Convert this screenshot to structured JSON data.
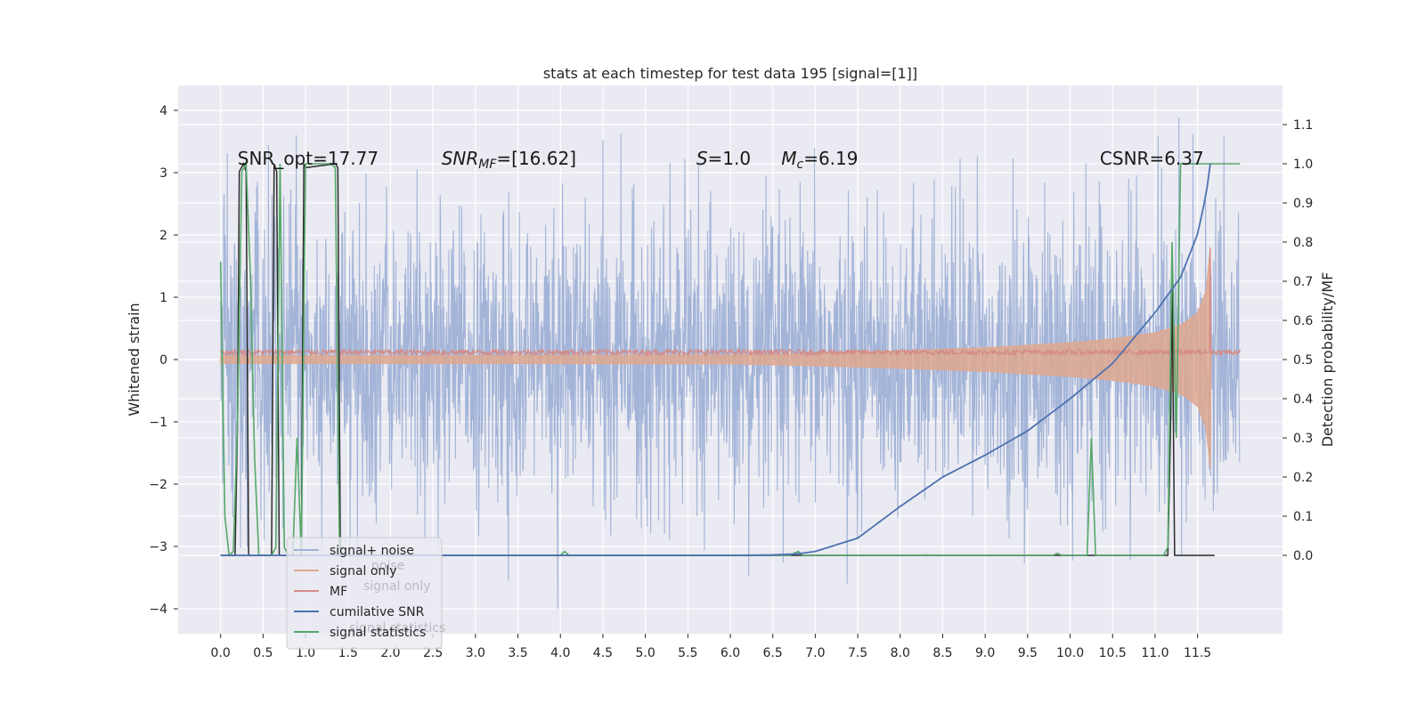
{
  "chart_data": {
    "type": "line",
    "title": "stats at each timestep for test data 195 [signal=[1]]",
    "xlabel": "",
    "ylabel": "Whitened strain",
    "ylabel_right": "Detection probability/MF",
    "xlim": [
      -0.5,
      12.5
    ],
    "ylim": [
      -4.4,
      4.4
    ],
    "ylim_right": [
      -0.2,
      1.2
    ],
    "x_ticks": [
      "0.0",
      "0.5",
      "1.0",
      "1.5",
      "2.0",
      "2.5",
      "3.0",
      "3.5",
      "4.0",
      "4.5",
      "5.0",
      "5.5",
      "6.0",
      "6.5",
      "7.0",
      "7.5",
      "8.0",
      "8.5",
      "9.0",
      "9.5",
      "10.0",
      "10.5",
      "11.0",
      "11.5"
    ],
    "y_ticks": [
      "4",
      "3",
      "2",
      "1",
      "0",
      "−1",
      "−2",
      "−3",
      "−4"
    ],
    "y_ticks_right": [
      "1.1",
      "1.0",
      "0.9",
      "0.8",
      "0.7",
      "0.6",
      "0.5",
      "0.4",
      "0.3",
      "0.2",
      "0.1",
      "0.0"
    ],
    "grid": true,
    "annotations": [
      {
        "text": "SNR_opt=17.77",
        "x": 0.2,
        "y": 3.2
      },
      {
        "text": "SNR",
        "sub": "MF",
        "tail": "=[16.62]",
        "italic": true,
        "x": 2.6,
        "y": 3.2
      },
      {
        "text": "S",
        "tail": "=1.0",
        "italic": true,
        "x": 5.6,
        "y": 3.2
      },
      {
        "text": "M",
        "sub": "c",
        "tail": "=6.19",
        "italic": true,
        "x": 6.6,
        "y": 3.2
      },
      {
        "text": "CSNR=6.37",
        "x": 10.35,
        "y": 3.2
      }
    ],
    "legend": {
      "placement": "lower-left",
      "entries": [
        {
          "name": "signal+ noise",
          "color": "#9fb1d6"
        },
        {
          "name": "signal only",
          "color": "#dfa88f"
        },
        {
          "name": "MF",
          "color": "#d48c88"
        },
        {
          "name": "cumilative SNR",
          "color": "#4c72b0"
        },
        {
          "name": "signal statistics",
          "color": "#55a868"
        }
      ],
      "ghost_texts": [
        "noise",
        "signal only",
        "signal statistics"
      ]
    },
    "series": [
      {
        "name": "signal+ noise",
        "axis": "left",
        "color": "#9fb1d6",
        "x_range": [
          0.0,
          12.0
        ],
        "typical_amplitude": 1.75,
        "peak_amplitude": 4.0
      },
      {
        "name": "signal only",
        "axis": "left",
        "color": "#dfa88f",
        "envelope": {
          "x": [
            0.0,
            6.0,
            7.0,
            8.0,
            9.0,
            10.0,
            10.5,
            11.0,
            11.3,
            11.5,
            11.6,
            11.65,
            11.66
          ],
          "upper": [
            0.06,
            0.07,
            0.1,
            0.14,
            0.19,
            0.27,
            0.33,
            0.43,
            0.55,
            0.75,
            1.1,
            1.8,
            0.0
          ],
          "lower": [
            -0.06,
            -0.07,
            -0.1,
            -0.14,
            -0.19,
            -0.27,
            -0.33,
            -0.43,
            -0.55,
            -0.75,
            -1.1,
            -1.75,
            0.0
          ]
        }
      },
      {
        "name": "MF",
        "axis": "left",
        "color": "#d48c88",
        "x_range": [
          0.0,
          12.0
        ],
        "baseline": 0.1,
        "amplitude": 0.09,
        "spikes": [
          {
            "x": 11.65,
            "y": 1.8
          }
        ]
      },
      {
        "name": "cumilative SNR",
        "axis": "right",
        "color": "#4c72b0",
        "x": [
          0.0,
          6.0,
          6.5,
          6.8,
          7.0,
          7.5,
          8.0,
          8.5,
          9.0,
          9.5,
          10.0,
          10.5,
          11.0,
          11.3,
          11.5,
          11.6,
          11.65
        ],
        "values": [
          0.0,
          0.0,
          0.001,
          0.004,
          0.01,
          0.044,
          0.125,
          0.2,
          0.256,
          0.318,
          0.4,
          0.49,
          0.62,
          0.71,
          0.82,
          0.92,
          1.0
        ]
      },
      {
        "name": "signal statistics",
        "axis": "right",
        "color": "#55a868",
        "x": [
          0.0,
          0.05,
          0.1,
          0.15,
          0.2,
          0.25,
          0.3,
          0.35,
          0.4,
          0.45,
          0.5,
          0.55,
          0.6,
          0.65,
          0.7,
          0.75,
          0.8,
          0.85,
          0.9,
          0.95,
          1.0,
          1.3,
          1.35,
          1.4,
          1.45,
          1.5,
          4.0,
          4.05,
          4.1,
          6.7,
          6.8,
          6.85,
          6.9,
          7.0,
          8.2,
          8.3,
          8.4,
          9.8,
          9.85,
          9.9,
          10.2,
          10.25,
          10.3,
          10.35,
          10.4,
          11.1,
          11.15,
          11.2,
          11.25,
          11.3,
          11.35,
          11.4,
          11.45,
          11.5,
          12.0
        ],
        "values": [
          0.75,
          0.1,
          0.0,
          0.01,
          0.35,
          0.98,
          1.0,
          0.72,
          0.25,
          0.0,
          0.0,
          0.0,
          0.0,
          0.02,
          1.0,
          0.02,
          0.0,
          0.0,
          0.3,
          0.0,
          1.0,
          1.0,
          0.99,
          0.0,
          0.0,
          0.0,
          0.0,
          0.01,
          0.0,
          0.0,
          0.01,
          0.0,
          0.0,
          0.0,
          0.0,
          0.001,
          0.0,
          0.0,
          0.005,
          0.0,
          0.0,
          0.3,
          0.0,
          0.0,
          0.0,
          0.0,
          0.02,
          0.8,
          0.3,
          1.0,
          1.0,
          1.0,
          1.0,
          1.0,
          1.0
        ]
      },
      {
        "name": "",
        "axis": "right",
        "color": "#2b2b2b",
        "x": [
          0.0,
          0.15,
          0.17,
          0.2,
          0.22,
          0.27,
          0.3,
          0.33,
          0.6,
          0.63,
          0.66,
          0.69,
          0.72,
          0.95,
          0.98,
          1.0,
          1.35,
          1.38,
          1.41,
          1.44,
          11.1,
          11.15,
          11.18,
          11.2,
          11.23,
          11.26,
          11.3,
          11.7
        ],
        "values": [
          0.0,
          0.0,
          0.0,
          0.35,
          0.98,
          1.0,
          0.98,
          0.0,
          0.0,
          1.0,
          0.98,
          0.0,
          0.0,
          0.0,
          1.0,
          0.99,
          1.0,
          0.99,
          0.0,
          0.0,
          0.0,
          0.0,
          0.3,
          0.7,
          0.0,
          0.0,
          0.0,
          0.0
        ]
      }
    ]
  }
}
